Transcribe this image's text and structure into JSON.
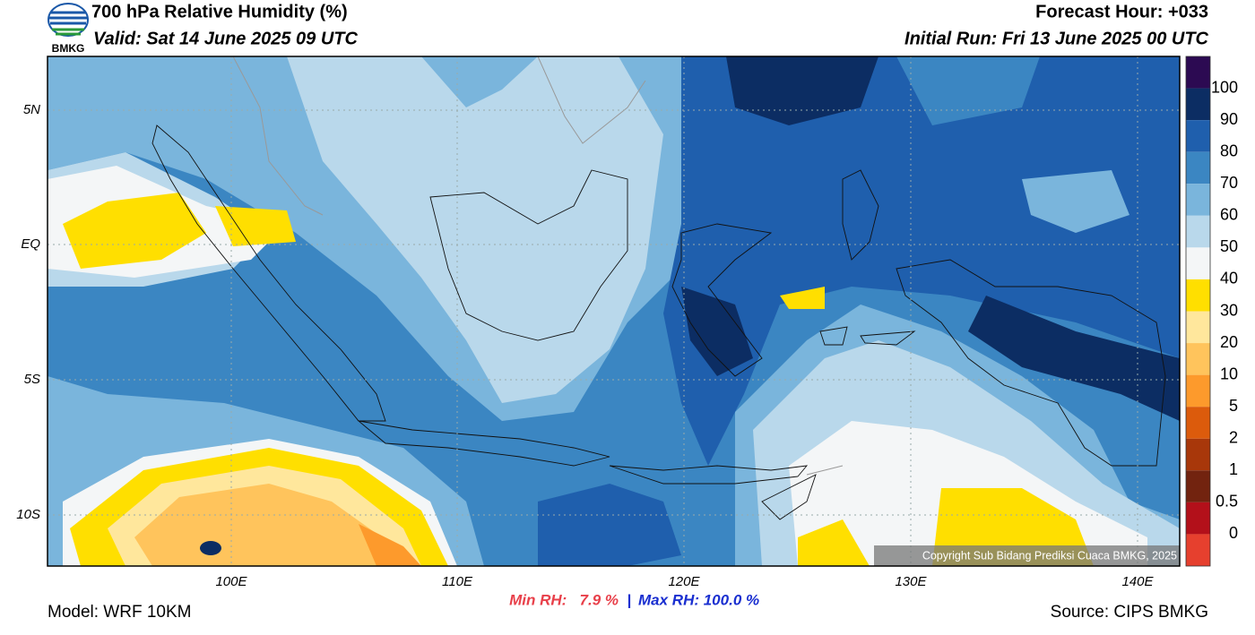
{
  "header": {
    "title": "700 hPa Relative Humidity (%)",
    "valid": "Valid: Sat 14 June 2025 09 UTC",
    "forecast_hour": "Forecast Hour: +033",
    "initial_run": "Initial Run: Fri 13 June 2025 00 UTC",
    "logo_text": "BMKG"
  },
  "map": {
    "lat_labels": [
      "5N",
      "EQ",
      "5S",
      "10S"
    ],
    "lon_labels": [
      "100E",
      "110E",
      "120E",
      "130E",
      "140E"
    ],
    "copyright": "Copyright Sub Bidang Prediksi Cuaca BMKG, 2025"
  },
  "colorbar": {
    "levels": [
      100,
      90,
      80,
      70,
      60,
      50,
      40,
      30,
      20,
      10,
      5,
      2,
      1,
      0.5,
      0
    ],
    "colors": [
      "#2c0a52",
      "#0c2d63",
      "#1f5fad",
      "#3b86c2",
      "#7ab5dc",
      "#b9d8eb",
      "#f4f6f7",
      "#ffdf00",
      "#ffe79c",
      "#ffc45c",
      "#fd9a2c",
      "#dc5b0c",
      "#a8370a",
      "#72230f",
      "#b3101a",
      "#e6402e"
    ]
  },
  "footer": {
    "model": "Model: WRF 10KM",
    "min_rh": "Min RH:   7.9 %",
    "separator": "|",
    "max_rh": "Max RH: 100.0 %",
    "source": "Source: CIPS BMKG"
  }
}
